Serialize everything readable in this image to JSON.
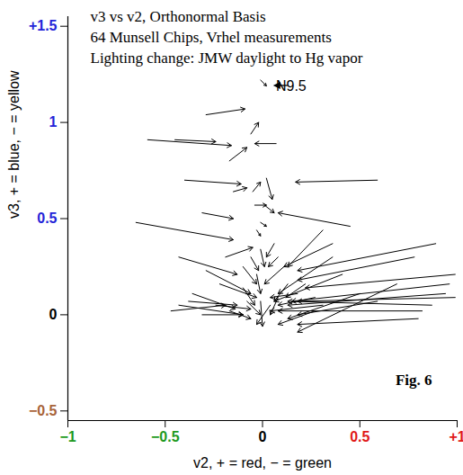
{
  "chart_data": {
    "type": "vector",
    "title": "v3 vs v2, Orthonormal Basis\n64 Munsell Chips, Vrhel measurements\nLighting change: JMW daylight to Hg vapor",
    "x_label": "v2, + = red, − = green",
    "y_label": "v3, + = blue, − = yellow",
    "annotation": "Fig. 6",
    "xlim": [
      -1,
      1
    ],
    "ylim": [
      -0.55,
      1.55
    ],
    "xticks": [
      {
        "value": -1,
        "label": "−1"
      },
      {
        "value": -0.5,
        "label": "−0.5"
      },
      0,
      0.5,
      {
        "value": 1,
        "label": "+1"
      }
    ],
    "yticks": [
      {
        "value": -0.5,
        "label": "−0.5"
      },
      0,
      0.5,
      1,
      {
        "value": 1.5,
        "label": "+1.5"
      }
    ],
    "color": "#000000",
    "arrows": [
      {
        "x1": -0.01,
        "y1": 1.22,
        "x2": 0.02,
        "y2": 1.19,
        "label": "N9.5"
      },
      {
        "x1": -0.29,
        "y1": 1.04,
        "x2": -0.09,
        "y2": 1.07
      },
      {
        "x1": -0.06,
        "y1": 0.94,
        "x2": -0.02,
        "y2": 1.0
      },
      {
        "x1": 0.07,
        "y1": 0.89,
        "x2": -0.04,
        "y2": 0.89
      },
      {
        "x1": -0.59,
        "y1": 0.91,
        "x2": -0.16,
        "y2": 0.88
      },
      {
        "x1": -0.45,
        "y1": 0.91,
        "x2": -0.24,
        "y2": 0.9
      },
      {
        "x1": -0.17,
        "y1": 0.8,
        "x2": -0.08,
        "y2": 0.87
      },
      {
        "x1": -0.4,
        "y1": 0.7,
        "x2": -0.11,
        "y2": 0.68
      },
      {
        "x1": -0.05,
        "y1": 0.64,
        "x2": -0.01,
        "y2": 0.69
      },
      {
        "x1": 0.02,
        "y1": 0.71,
        "x2": 0.05,
        "y2": 0.6
      },
      {
        "x1": 0.59,
        "y1": 0.7,
        "x2": 0.17,
        "y2": 0.69
      },
      {
        "x1": -0.04,
        "y1": 0.57,
        "x2": 0.02,
        "y2": 0.57
      },
      {
        "x1": 0.45,
        "y1": 0.46,
        "x2": 0.08,
        "y2": 0.53
      },
      {
        "x1": -0.65,
        "y1": 0.48,
        "x2": -0.15,
        "y2": 0.39
      },
      {
        "x1": -0.31,
        "y1": 0.53,
        "x2": -0.15,
        "y2": 0.5
      },
      {
        "x1": -0.03,
        "y1": 0.44,
        "x2": -0.01,
        "y2": 0.41
      },
      {
        "x1": -0.19,
        "y1": 0.3,
        "x2": -0.05,
        "y2": 0.35
      },
      {
        "x1": -0.43,
        "y1": 0.3,
        "x2": -0.13,
        "y2": 0.21
      },
      {
        "x1": -0.01,
        "y1": 0.34,
        "x2": 0.01,
        "y2": 0.25
      },
      {
        "x1": 0.08,
        "y1": 0.3,
        "x2": 0.03,
        "y2": 0.25
      },
      {
        "x1": 0.31,
        "y1": 0.44,
        "x2": 0.13,
        "y2": 0.25
      },
      {
        "x1": 0.36,
        "y1": 0.37,
        "x2": 0.11,
        "y2": 0.25
      },
      {
        "x1": 0.89,
        "y1": 0.37,
        "x2": 0.18,
        "y2": 0.23
      },
      {
        "x1": 0.78,
        "y1": 0.3,
        "x2": 0.18,
        "y2": 0.18
      },
      {
        "x1": 0.99,
        "y1": 0.21,
        "x2": 0.22,
        "y2": 0.14
      },
      {
        "x1": 0.96,
        "y1": 0.16,
        "x2": 0.15,
        "y2": 0.07
      },
      {
        "x1": 0.94,
        "y1": 0.11,
        "x2": 0.13,
        "y2": 0.05
      },
      {
        "x1": 0.99,
        "y1": 0.09,
        "x2": 0.18,
        "y2": 0.07
      },
      {
        "x1": 0.87,
        "y1": 0.05,
        "x2": 0.13,
        "y2": 0.07
      },
      {
        "x1": 0.82,
        "y1": 0.02,
        "x2": 0.08,
        "y2": 0.02
      },
      {
        "x1": 0.8,
        "y1": -0.02,
        "x2": 0.18,
        "y2": -0.05
      },
      {
        "x1": 0.69,
        "y1": 0.16,
        "x2": 0.18,
        "y2": -0.09
      },
      {
        "x1": 0.5,
        "y1": 0.11,
        "x2": 0.13,
        "y2": -0.02
      },
      {
        "x1": 0.41,
        "y1": 0.21,
        "x2": 0.06,
        "y2": 0.07
      },
      {
        "x1": 0.36,
        "y1": 0.3,
        "x2": 0.08,
        "y2": 0.11
      },
      {
        "x1": -0.29,
        "y1": 0.23,
        "x2": -0.06,
        "y2": 0.11
      },
      {
        "x1": -0.22,
        "y1": 0.16,
        "x2": -0.03,
        "y2": 0.09
      },
      {
        "x1": -0.43,
        "y1": 0.05,
        "x2": -0.1,
        "y2": 0.0
      },
      {
        "x1": -0.38,
        "y1": 0.07,
        "x2": -0.13,
        "y2": 0.05
      },
      {
        "x1": -0.47,
        "y1": 0.02,
        "x2": -0.19,
        "y2": 0.05
      },
      {
        "x1": -0.31,
        "y1": 0.0,
        "x2": -0.1,
        "y2": 0.0
      },
      {
        "x1": -0.1,
        "y1": 0.14,
        "x2": -0.04,
        "y2": 0.05
      },
      {
        "x1": -0.03,
        "y1": 0.21,
        "x2": -0.01,
        "y2": 0.11
      },
      {
        "x1": -0.01,
        "y1": 0.07,
        "x2": 0.0,
        "y2": -0.06
      },
      {
        "x1": 0.04,
        "y1": 0.05,
        "x2": -0.03,
        "y2": -0.05
      },
      {
        "x1": 0.08,
        "y1": 0.09,
        "x2": 0.04,
        "y2": 0.0
      },
      {
        "x1": 0.27,
        "y1": 0.09,
        "x2": 0.08,
        "y2": 0.05
      },
      {
        "x1": 0.31,
        "y1": 0.05,
        "x2": 0.04,
        "y2": 0.02
      },
      {
        "x1": 0.18,
        "y1": 0.11,
        "x2": 0.04,
        "y2": 0.09
      },
      {
        "x1": -0.08,
        "y1": 0.07,
        "x2": -0.01,
        "y2": 0.0
      },
      {
        "x1": -0.17,
        "y1": 0.02,
        "x2": -0.06,
        "y2": -0.02
      },
      {
        "x1": 0.11,
        "y1": 0.25,
        "x2": 0.01,
        "y2": 0.16
      },
      {
        "x1": 0.13,
        "y1": 0.16,
        "x2": 0.06,
        "y2": 0.07
      },
      {
        "x1": -0.24,
        "y1": 0.05,
        "x2": -0.06,
        "y2": 0.03
      },
      {
        "x1": -0.1,
        "y1": 0.25,
        "x2": -0.03,
        "y2": 0.16
      },
      {
        "x1": -0.06,
        "y1": 0.3,
        "x2": -0.02,
        "y2": 0.23
      },
      {
        "x1": 0.06,
        "y1": 0.37,
        "x2": 0.02,
        "y2": 0.3
      },
      {
        "x1": -0.15,
        "y1": 0.64,
        "x2": -0.08,
        "y2": 0.66
      },
      {
        "x1": 0.59,
        "y1": 0.07,
        "x2": 0.18,
        "y2": 0.0
      },
      {
        "x1": 0.27,
        "y1": 0.02,
        "x2": 0.08,
        "y2": -0.05
      },
      {
        "x1": 0.22,
        "y1": 0.16,
        "x2": 0.12,
        "y2": 0.09
      },
      {
        "x1": -0.36,
        "y1": 0.11,
        "x2": -0.14,
        "y2": 0.03
      },
      {
        "x1": -0.01,
        "y1": 0.48,
        "x2": 0.02,
        "y2": 0.46
      },
      {
        "x1": 0.01,
        "y1": 0.57,
        "x2": 0.06,
        "y2": 0.53
      }
    ]
  }
}
